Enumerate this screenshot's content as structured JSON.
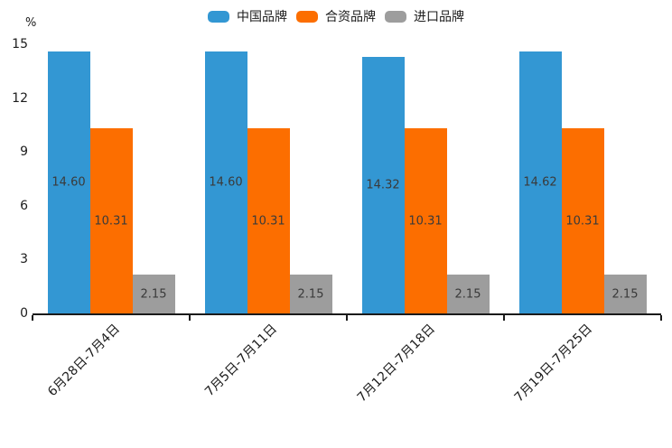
{
  "chart_data": {
    "type": "bar",
    "title": "",
    "ylabel": "%",
    "xlabel": "",
    "ylim": [
      0,
      15
    ],
    "yticks": [
      0,
      3,
      6,
      9,
      12,
      15
    ],
    "grid": false,
    "legend_position": "top",
    "value_decimals": 2,
    "categories": [
      "6月28日-7月4日",
      "7月5日-7月11日",
      "7月12日-7月18日",
      "7月19日-7月25日"
    ],
    "series": [
      {
        "name": "中国品牌",
        "color": "#3397d3",
        "values": [
          14.6,
          14.6,
          14.32,
          14.62
        ]
      },
      {
        "name": "合资品牌",
        "color": "#fc6e00",
        "values": [
          10.31,
          10.31,
          10.31,
          10.31
        ]
      },
      {
        "name": "进口品牌",
        "color": "#9d9d9d",
        "values": [
          2.15,
          2.15,
          2.15,
          2.15
        ]
      }
    ],
    "colors": {
      "axis_line": "#1a1a1a",
      "tick_label": "#1c1c1c",
      "bar_value_label": "#3a3a3a",
      "background": "#ffffff"
    }
  }
}
